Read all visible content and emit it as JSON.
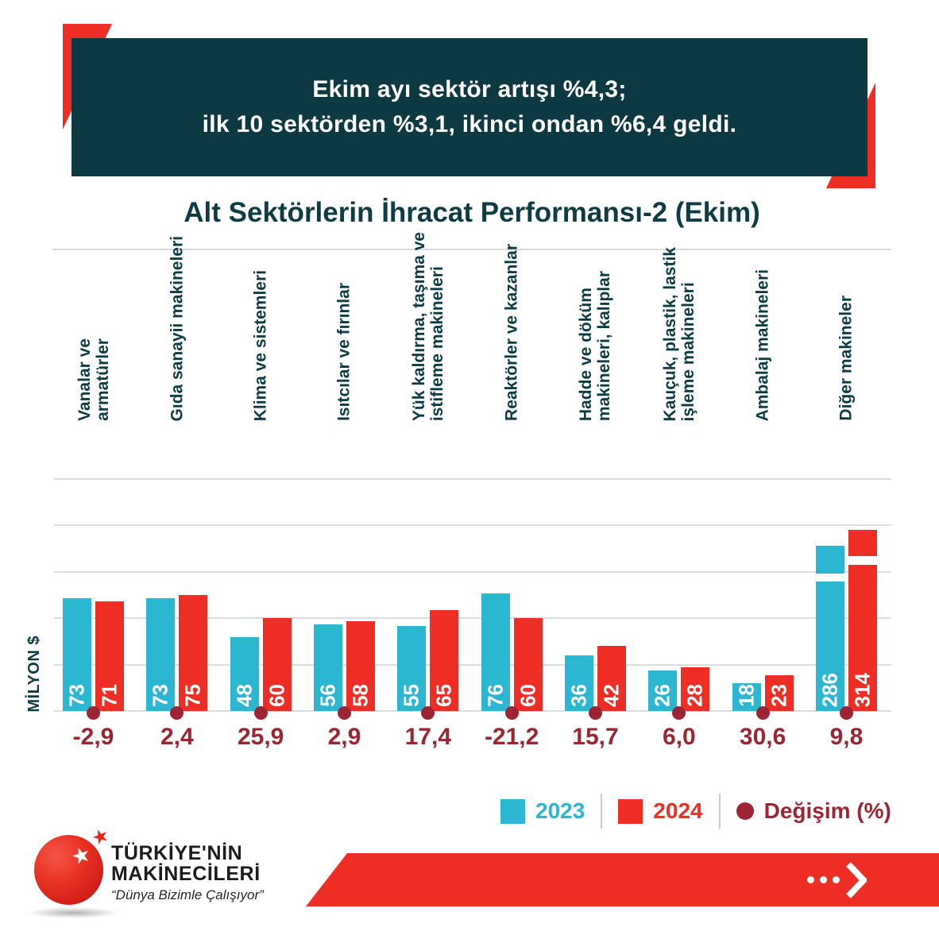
{
  "header_banner": {
    "line1": "Ekim ayı sektör artışı %4,3;",
    "line2": "ilk 10 sektörden %3,1, ikinci ondan %6,4 geldi."
  },
  "chart_title": "Alt Sektörlerin İhracat Performansı-2 (Ekim)",
  "y_axis_label": "MİLYON $",
  "chart_data": {
    "type": "bar",
    "title": "Alt Sektörlerin İhracat Performansı-2 (Ekim)",
    "ylabel": "MİLYON $",
    "ylim": [
      0,
      150
    ],
    "gridline_step": 30,
    "grid": "horizontal",
    "legend_position": "bottom-right",
    "broken_bars_note": "286 ve 314 çubukları eksen üstünde kesik gösterilir",
    "categories": [
      "Vanalar ve\narmatürler",
      "Gıda sanayii makineleri",
      "Klima ve sistemleri",
      "Isıtcılar ve fırınlar",
      "Yük kaldırma, taşıma ve\nistifleme makineleri",
      "Reaktörler ve kazanlar",
      "Hadde ve döküm\nmakineleri, kalıplar",
      "Kauçuk, plastik, lastik\nişleme makineleri",
      "Ambalaj makineleri",
      "Diğer makineler"
    ],
    "series": [
      {
        "name": "2023",
        "color": "#2bb6d1",
        "values": [
          73,
          73,
          48,
          56,
          55,
          76,
          36,
          26,
          18,
          286
        ]
      },
      {
        "name": "2024",
        "color": "#ee2e24",
        "values": [
          71,
          75,
          60,
          58,
          65,
          60,
          42,
          28,
          23,
          314
        ]
      }
    ],
    "change_series": {
      "name": "Değişim (%)",
      "color": "#9c2433",
      "values": [
        "-2,9",
        "2,4",
        "25,9",
        "2,9",
        "17,4",
        "-21,2",
        "15,7",
        "6,0",
        "30,6",
        "9,8"
      ]
    }
  },
  "legend": {
    "items": [
      {
        "label": "2023",
        "color": "#2bb6d1",
        "marker": "square"
      },
      {
        "label": "2024",
        "color": "#ee2e24",
        "marker": "square"
      },
      {
        "label": "Değişim (%)",
        "color": "#9c2433",
        "marker": "dot"
      }
    ]
  },
  "logo": {
    "line1": "TÜRKİYE'NİN",
    "line2": "MAKİNECİLERİ",
    "tagline": "“Dünya Bizimle Çalışıyor”"
  },
  "colors": {
    "banner_background": "#0d3a42",
    "accent_red": "#ee2e24",
    "cyan_2023": "#2bb6d1",
    "red_2024": "#ee2e24",
    "dark_red_change": "#9c2433",
    "teal_text": "#0e3c44",
    "gridline": "#dbdedf"
  }
}
